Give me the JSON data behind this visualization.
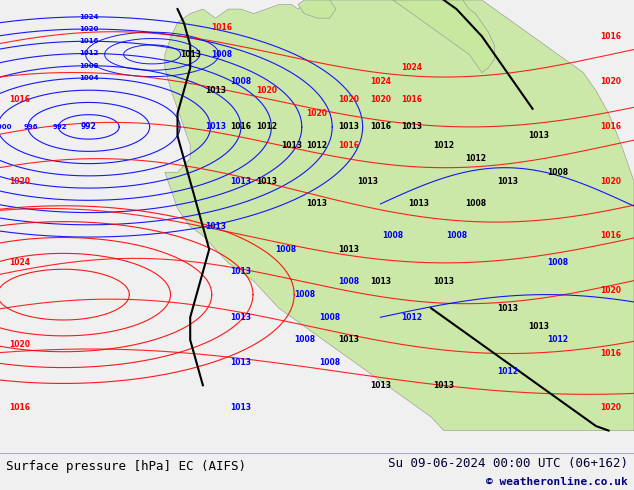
{
  "title_left": "Surface pressure [hPa] EC (AIFS)",
  "title_right": "Su 09-06-2024 00:00 UTC (06+162)",
  "copyright": "© weatheronline.co.uk",
  "bg_color": "#f0f0f0",
  "ocean_color": "#e8e8e8",
  "land_color": "#c8e8a0",
  "land_edge_color": "#888888",
  "bottom_bar_color": "#dcdce8",
  "text_color_left": "#000000",
  "text_color_right": "#000030",
  "copyright_color": "#000080",
  "font_size_bottom": 9,
  "font_size_copyright": 8
}
